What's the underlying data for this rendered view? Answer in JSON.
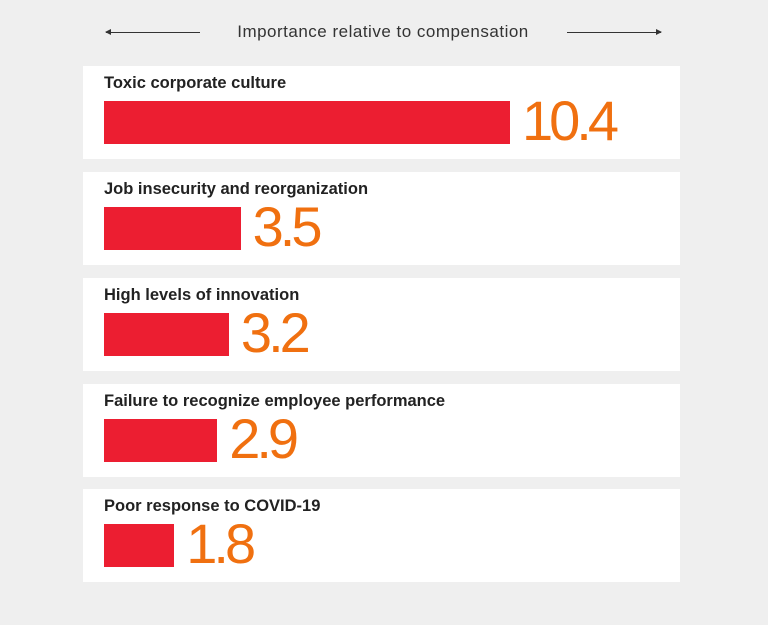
{
  "chart_data": {
    "type": "bar",
    "orientation": "horizontal",
    "title": "Importance relative to compensation",
    "categories": [
      "Toxic corporate culture",
      "Job insecurity and reorganization",
      "High levels of innovation",
      "Failure to recognize employee performance",
      "Poor response to COVID-19"
    ],
    "values": [
      10.4,
      3.5,
      3.2,
      2.9,
      1.8
    ],
    "value_labels": [
      "10.4",
      "3.5",
      "3.2",
      "2.9",
      "1.8"
    ],
    "xlabel": "",
    "ylabel": "",
    "xlim": [
      0,
      10.4
    ],
    "grid": false,
    "colors": {
      "bar": "#ec1e31",
      "value": "#f07010",
      "background": "#efefef",
      "card": "#ffffff"
    }
  }
}
